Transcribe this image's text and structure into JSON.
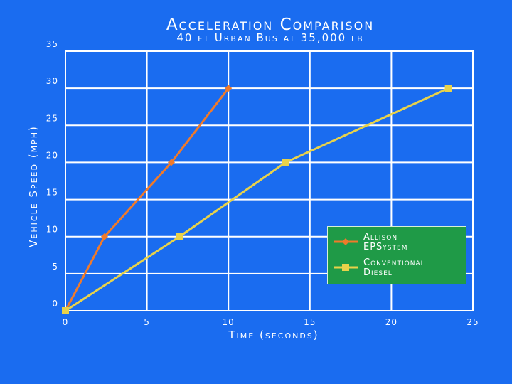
{
  "chart_data": {
    "type": "line",
    "title": "Acceleration Comparison",
    "subtitle": "40 ft Urban Bus at 35,000 lb",
    "xlabel": "Time (seconds)",
    "ylabel": "Vehicle Speed (mph)",
    "xlim": [
      0,
      25
    ],
    "ylim": [
      0,
      35
    ],
    "xticks": [
      "0",
      "5",
      "10",
      "15",
      "20",
      "25"
    ],
    "yticks": [
      "0",
      "5",
      "10",
      "15",
      "20",
      "25",
      "30",
      "35"
    ],
    "grid": true,
    "legend_position": "lower-right",
    "series": [
      {
        "name": "Allison EPSystem",
        "legend_lines": [
          "Allison",
          "EPSystem"
        ],
        "color": "#f07a2a",
        "marker": "diamond",
        "points": [
          [
            0,
            0
          ],
          [
            2.4,
            10
          ],
          [
            6.5,
            20
          ],
          [
            10,
            30
          ]
        ]
      },
      {
        "name": "Conventional Diesel",
        "legend_lines": [
          "Conventional",
          "Diesel"
        ],
        "color": "#e8d24a",
        "marker": "square",
        "points": [
          [
            0,
            0
          ],
          [
            7,
            10
          ],
          [
            13.5,
            20
          ],
          [
            23.5,
            30
          ]
        ]
      }
    ],
    "colors": {
      "background": "#1a6cf0",
      "grid": "#ffffff",
      "legend_bg": "#1f9a47"
    }
  }
}
